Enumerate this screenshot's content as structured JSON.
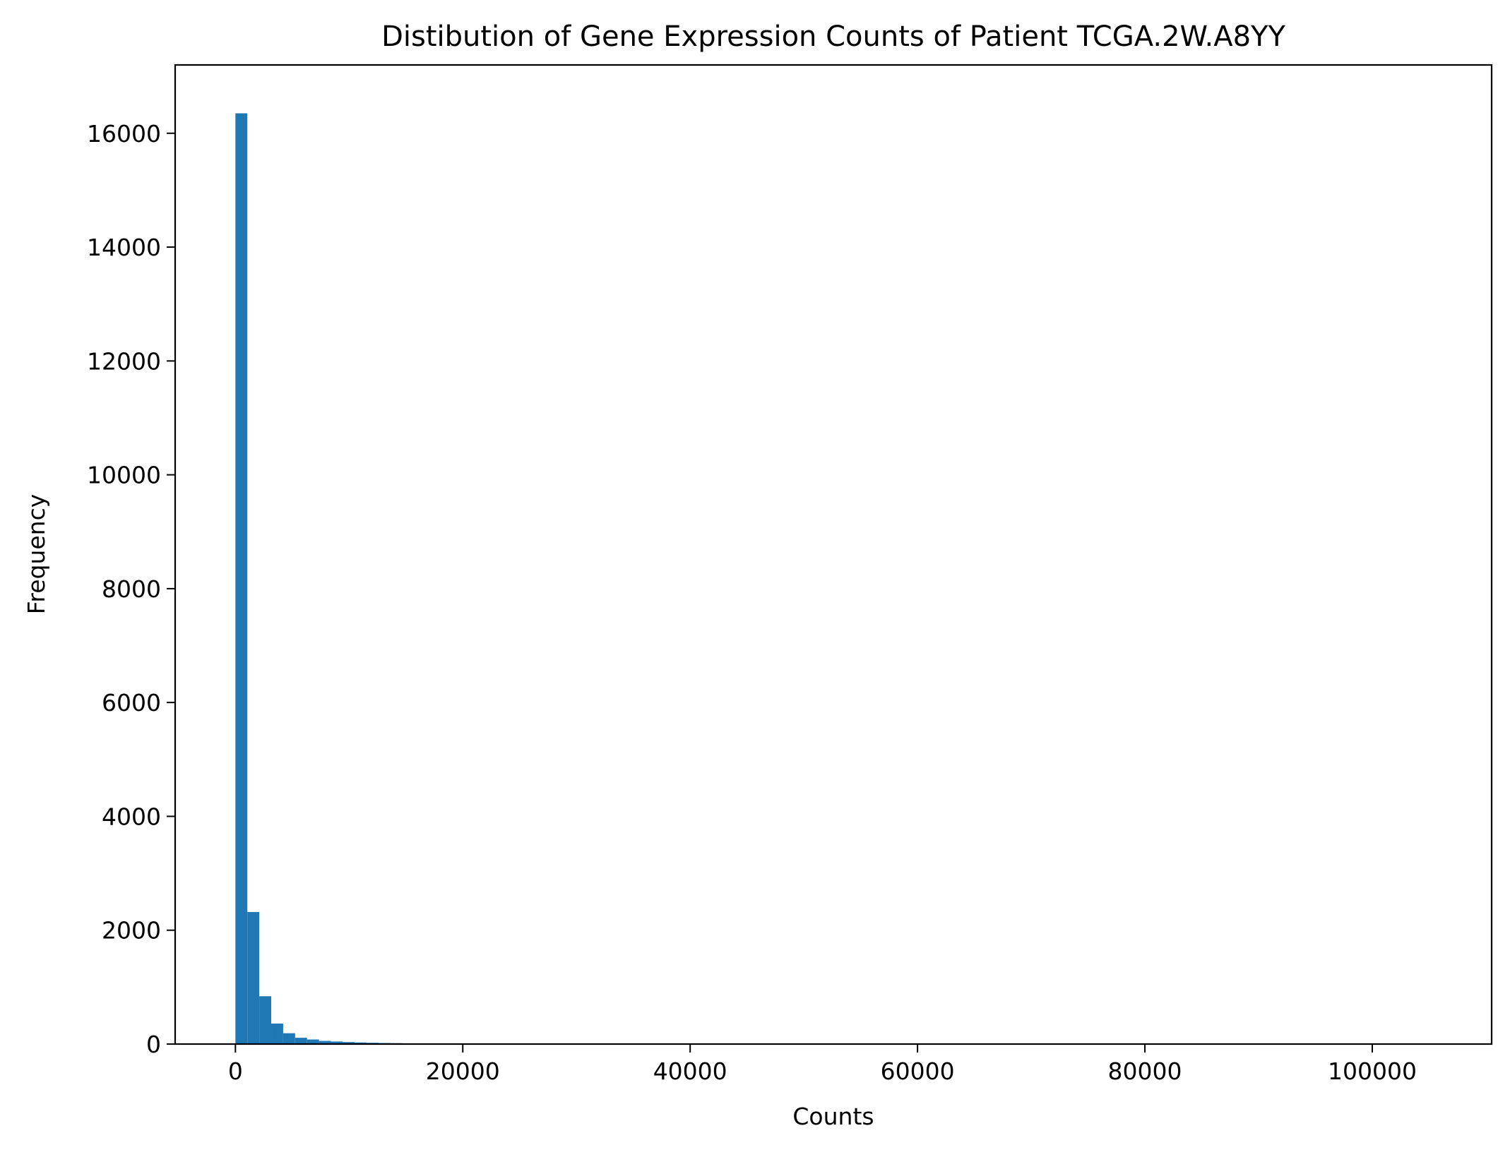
{
  "chart_data": {
    "type": "bar",
    "title": "Distibution of Gene Expression Counts of Patient TCGA.2W.A8YY",
    "xlabel": "Counts",
    "ylabel": "Frequency",
    "xlim": [
      -5300,
      110500
    ],
    "ylim": [
      0,
      17200
    ],
    "xticks": [
      0,
      20000,
      40000,
      60000,
      80000,
      100000
    ],
    "yticks": [
      0,
      2000,
      4000,
      6000,
      8000,
      10000,
      12000,
      14000,
      16000
    ],
    "grid": false,
    "bar_color": "#1f77b4",
    "bin_width": 1050,
    "bin_start": 0,
    "values": [
      16350,
      2320,
      840,
      360,
      190,
      110,
      80,
      55,
      45,
      35,
      28,
      22,
      18,
      15,
      12
    ]
  }
}
